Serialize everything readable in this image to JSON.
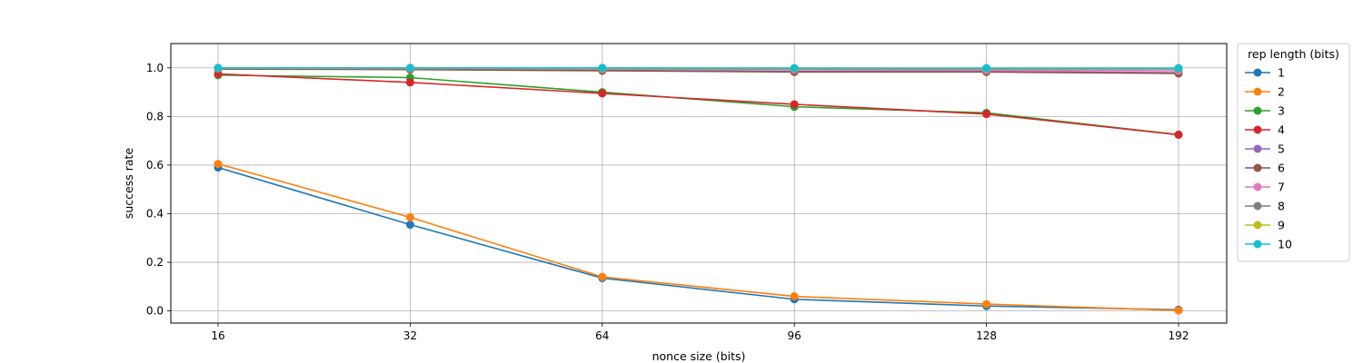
{
  "chart_data": {
    "type": "line",
    "title": "",
    "xlabel": "nonce size (bits)",
    "ylabel": "success rate",
    "categories": [
      "16",
      "32",
      "64",
      "96",
      "128",
      "192"
    ],
    "ylim": [
      -0.05,
      1.1
    ],
    "yticks": [
      "0.0",
      "0.2",
      "0.4",
      "0.6",
      "0.8",
      "1.0"
    ],
    "grid": true,
    "legend": {
      "title": "rep length (bits)",
      "placement": "outside-right-top"
    },
    "series": [
      {
        "name": "1",
        "color": "#1f77b4",
        "values": [
          0.59,
          0.355,
          0.135,
          0.048,
          0.02,
          0.005
        ]
      },
      {
        "name": "2",
        "color": "#ff7f0e",
        "values": [
          0.605,
          0.385,
          0.14,
          0.06,
          0.028,
          0.002
        ]
      },
      {
        "name": "3",
        "color": "#2ca02c",
        "values": [
          0.97,
          0.96,
          0.9,
          0.84,
          0.815,
          0.725
        ]
      },
      {
        "name": "4",
        "color": "#d62728",
        "values": [
          0.975,
          0.94,
          0.895,
          0.85,
          0.81,
          0.725
        ]
      },
      {
        "name": "5",
        "color": "#9467bd",
        "values": [
          0.997,
          0.995,
          0.99,
          0.985,
          0.985,
          0.98
        ]
      },
      {
        "name": "6",
        "color": "#8c564b",
        "values": [
          0.995,
          0.993,
          0.988,
          0.983,
          0.983,
          0.977
        ]
      },
      {
        "name": "7",
        "color": "#e377c2",
        "values": [
          0.998,
          0.997,
          0.995,
          0.992,
          0.99,
          0.988
        ]
      },
      {
        "name": "8",
        "color": "#7f7f7f",
        "values": [
          0.999,
          0.998,
          0.997,
          0.995,
          0.995,
          0.995
        ]
      },
      {
        "name": "9",
        "color": "#bcbd22",
        "values": [
          0.999,
          0.999,
          0.998,
          0.997,
          0.997,
          0.997
        ]
      },
      {
        "name": "10",
        "color": "#17becf",
        "values": [
          1.0,
          1.0,
          1.0,
          0.999,
          0.999,
          0.999
        ]
      }
    ]
  }
}
